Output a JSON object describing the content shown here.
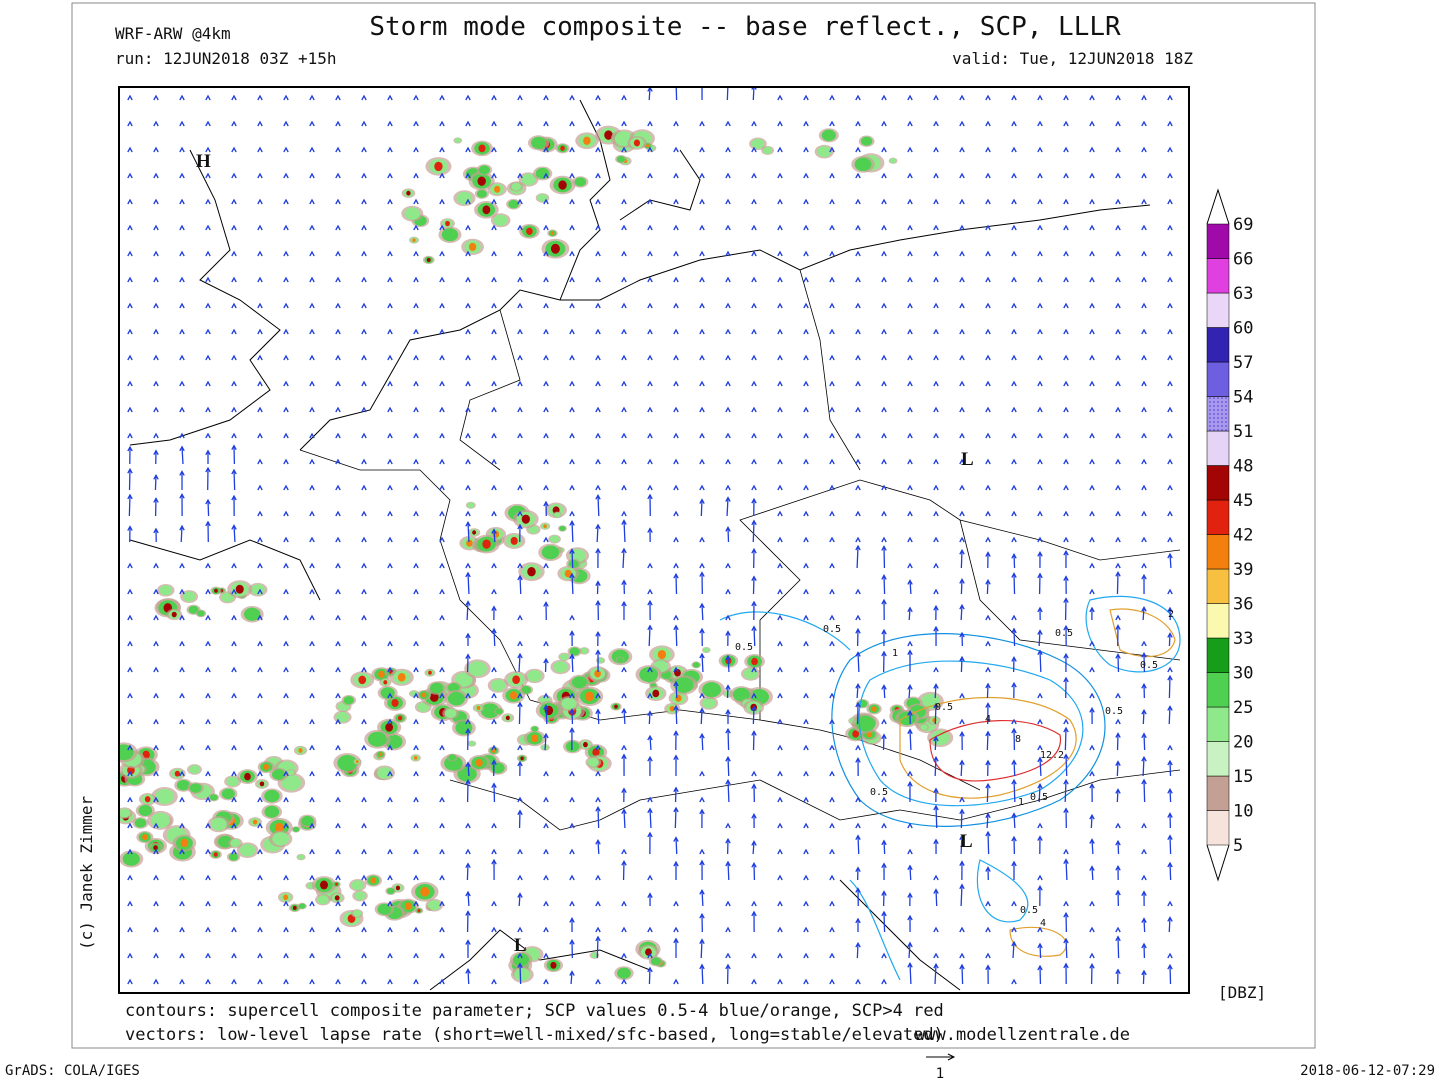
{
  "header": {
    "model": "WRF-ARW @4km",
    "title": "Storm mode composite -- base reflect., SCP, LLLR",
    "run": "run: 12JUN2018 03Z +15h",
    "valid": "valid: Tue, 12JUN2018 18Z"
  },
  "map": {
    "pressure_centers": [
      "H",
      "L",
      "L",
      "L"
    ],
    "contour_labels": [
      "0.5",
      "0.5",
      "1",
      "0.5",
      "0.5",
      "2",
      "0.5",
      "4",
      "8",
      "12.2",
      "0.5",
      "1",
      "0.5",
      "0.5",
      "0.5",
      "4"
    ]
  },
  "colorbar": {
    "levels": [
      5,
      10,
      15,
      20,
      25,
      30,
      33,
      36,
      39,
      42,
      45,
      48,
      51,
      54,
      57,
      60,
      63,
      66,
      69
    ],
    "colors": [
      "#f5e3dc",
      "#c4a094",
      "#c9f2c2",
      "#8fe88a",
      "#50d050",
      "#169e1a",
      "#fbf8b0",
      "#f7c040",
      "#f27f0e",
      "#e0220e",
      "#a30404",
      "#e6d4f6",
      "#a898ee",
      "#6e5ee0",
      "#3224b0",
      "#ead6f6",
      "#e040e0",
      "#a00aa8"
    ],
    "unit": "[DBZ]"
  },
  "footer": {
    "contours": "contours: supercell composite parameter; SCP values 0.5-4 blue/orange, SCP>4 red",
    "vectors": "vectors: low-level lapse rate (short=well-mixed/sfc-based, long=stable/elevated)",
    "website": "www.modellzentrale.de",
    "credit": "(c) Janek Zimmer",
    "software": "GrADS: COLA/IGES",
    "timestamp": "2018-06-12-07:29",
    "reference_vector": "1"
  }
}
